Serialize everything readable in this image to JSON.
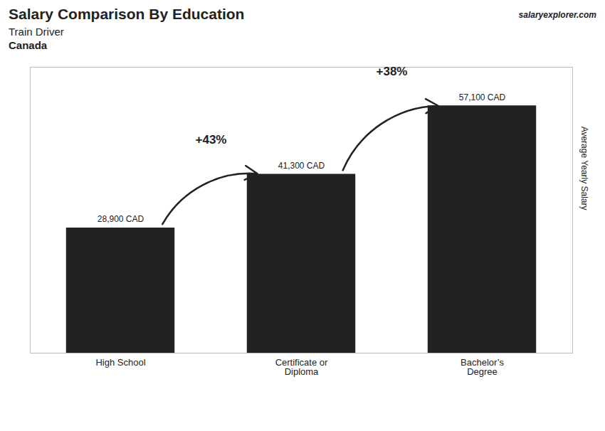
{
  "chart_data": {
    "type": "bar",
    "title": "Salary Comparison By Education",
    "subtitle": [
      "Train Driver",
      "Canada"
    ],
    "categories": [
      "High School",
      "Certificate or\nDiploma",
      "Bachelor’s\nDegree"
    ],
    "values": [
      28900,
      41300,
      57100
    ],
    "value_labels": [
      "28,900 CAD",
      "41,300 CAD",
      "57,100 CAD"
    ],
    "data_labels": true,
    "ylabel": "Average Yearly Salary",
    "ylim": [
      0,
      66000
    ],
    "tick_labels": "x",
    "annotations": [
      {
        "text": "+43%",
        "from": "High School",
        "to": "Certificate or\nDiploma"
      },
      {
        "text": "+38%",
        "from": "Certificate or\nDiploma",
        "to": "Bachelor’s\nDegree"
      },
      {
        "text": "salaryexplorer.com"
      }
    ]
  }
}
